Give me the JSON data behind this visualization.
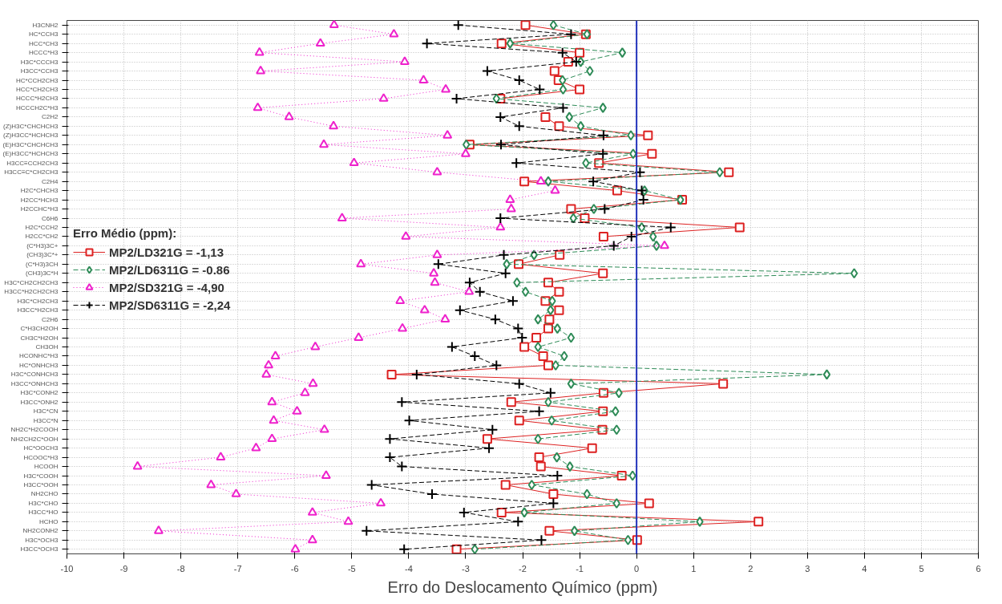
{
  "chart_data": {
    "type": "line",
    "orientation": "horizontal",
    "xlabel": "Erro do Deslocamento Químico (ppm)",
    "legend_title": "Erro Médio (ppm):",
    "legend": "left",
    "grid": true,
    "categories": [
      "H3CNH2",
      "HC*CCH3",
      "HCC*CH3",
      "HCCC*H3",
      "H3C*CCCH3",
      "H3CC*CCH3",
      "HC*CCH2CH3",
      "HCC*CH2CH3",
      "HCCC*H2CH3",
      "HCCCH2C*H3",
      "C2H2",
      "(Z)H3C*CHCHCH3",
      "(Z)H3CC*HCHCH3",
      "(E)H3C*CHCHCH3",
      "(E)H3CC*HCHCH3",
      "H3CC≡CCH2CH3",
      "H3CC≡C*CH2CH3",
      "C2H4",
      "H2C*CHCH3",
      "H2CC*HCH3",
      "H2CCHC*H3",
      "C6H6",
      "H2C*CCH2",
      "H2CC*CH2",
      "(C*H3)3C+",
      "(CH3)3C*+",
      "(C*H3)3CH",
      "(CH3)3C*H",
      "H3C*CH2CH2CH3",
      "H3CC*H2CH2CH3",
      "H3C*CH2CH3",
      "H3CC*H2CH3",
      "C2H6",
      "C*H3CH2OH",
      "CH3C*H2OH",
      "CH3OH",
      "HCONHC*H3",
      "HC*ONHCH3",
      "H3C*CONHCH3",
      "H3CC*ONHCH3",
      "H3C*CONH2",
      "H3CC*ONH2",
      "H3C*CN",
      "H3CC*N",
      "NH2C*H2COOH",
      "NH2CH2C*OOH",
      "HC*OOCH3",
      "HCOOC*H3",
      "HCOOH",
      "H3C*COOH",
      "H3CC*OOH",
      "NH2CHO",
      "H3C*CHO",
      "H3CC*HO",
      "HCHO",
      "NH2CONH2",
      "H3C*OCH3",
      "H3CC*OCH3"
    ],
    "xlim": [
      -10,
      6
    ],
    "xticks": [
      -10,
      -9,
      -8,
      -7,
      -6,
      -5,
      -4,
      -3,
      -2,
      -1,
      0,
      1,
      2,
      3,
      4,
      5,
      6
    ],
    "ref_lines": [
      {
        "axis": "x",
        "value": 0,
        "color": "#2233bb"
      }
    ],
    "series": [
      {
        "name": "MP2/LD321G = -1,13",
        "color": "#dd2222",
        "marker": "square",
        "line_style": "solid",
        "values": [
          -1.95,
          -0.89,
          -2.37,
          -1.0,
          -1.2,
          -1.44,
          -1.37,
          -1.0,
          -2.39,
          null,
          -1.6,
          -1.36,
          0.2,
          -2.93,
          0.27,
          -0.66,
          1.62,
          -1.97,
          -0.34,
          0.8,
          -1.15,
          -0.91,
          1.81,
          -0.58,
          null,
          -1.35,
          -2.07,
          -0.59,
          -1.55,
          -1.36,
          -1.6,
          -1.36,
          -1.53,
          -1.55,
          -1.76,
          -1.97,
          -1.64,
          -1.55,
          -4.3,
          1.52,
          -0.58,
          -2.2,
          -0.59,
          -2.06,
          -0.6,
          -2.62,
          -0.78,
          -1.71,
          -1.68,
          -0.26,
          -2.3,
          -1.46,
          0.22,
          -2.37,
          2.14,
          -1.53,
          0.01,
          -3.16
        ]
      },
      {
        "name": "MP2/LD6311G = -0.86",
        "color": "#2e8b57",
        "marker": "diamond",
        "line_style": "dashed",
        "values": [
          -1.46,
          -0.87,
          -2.22,
          -0.25,
          -0.98,
          -0.82,
          -1.3,
          -1.29,
          -2.46,
          -0.59,
          -1.18,
          -0.98,
          -0.1,
          -2.99,
          -0.06,
          -0.89,
          1.46,
          -1.55,
          0.14,
          0.77,
          -0.75,
          -1.11,
          0.09,
          0.29,
          0.35,
          -1.8,
          -2.28,
          3.82,
          -2.1,
          -1.95,
          -1.48,
          -1.51,
          -1.73,
          -1.39,
          -1.15,
          -1.73,
          -1.27,
          -1.42,
          3.34,
          -1.15,
          -0.31,
          -1.55,
          -0.37,
          -1.49,
          -0.35,
          -1.73,
          null,
          -1.4,
          -1.17,
          -0.07,
          -1.84,
          -0.87,
          -0.35,
          -1.97,
          1.11,
          -1.09,
          -0.15,
          -2.84
        ]
      },
      {
        "name": "MP2/SD321G = -4,90",
        "color": "#ee22cc",
        "marker": "triangle",
        "line_style": "dotted",
        "values": [
          -5.31,
          -4.26,
          -5.55,
          -6.62,
          -4.07,
          -6.6,
          -3.74,
          -3.35,
          -4.44,
          -6.65,
          -6.1,
          -5.32,
          -3.32,
          -5.49,
          -3.0,
          -4.96,
          -3.5,
          -1.68,
          -1.43,
          -2.22,
          -2.2,
          -5.17,
          -2.39,
          -4.05,
          0.49,
          -3.5,
          -4.84,
          -3.56,
          -3.54,
          -2.94,
          -4.15,
          -3.72,
          -3.36,
          -4.11,
          -4.88,
          -5.64,
          -6.34,
          -6.46,
          -6.5,
          -5.68,
          -5.82,
          -6.4,
          -5.96,
          -6.37,
          -5.48,
          -6.4,
          -6.68,
          -7.3,
          -8.76,
          -5.45,
          -7.47,
          -7.03,
          -4.49,
          -5.69,
          -5.06,
          -8.39,
          -5.69,
          -5.99
        ]
      },
      {
        "name": "MP2/SD6311G = -2,24",
        "color": "#000000",
        "marker": "cross",
        "line_style": "dashed",
        "values": [
          -3.13,
          -1.15,
          -3.68,
          -1.3,
          -1.06,
          -2.62,
          -2.06,
          -1.7,
          -3.16,
          -1.29,
          -2.39,
          -2.06,
          -0.58,
          -2.38,
          -0.59,
          -2.11,
          0.06,
          -0.76,
          0.09,
          0.12,
          -0.56,
          -2.39,
          0.6,
          -0.09,
          -0.4,
          -2.33,
          -3.48,
          -2.3,
          -2.93,
          -2.75,
          -2.17,
          -3.1,
          -2.48,
          -2.08,
          -2.01,
          -3.24,
          -2.84,
          -2.46,
          -3.86,
          -2.06,
          -1.51,
          -4.12,
          -1.71,
          -3.99,
          -2.53,
          -4.33,
          -2.59,
          -4.33,
          -4.12,
          -1.39,
          -4.65,
          -3.59,
          -1.46,
          -3.03,
          -2.08,
          -4.74,
          -1.67,
          -4.08
        ]
      }
    ]
  }
}
